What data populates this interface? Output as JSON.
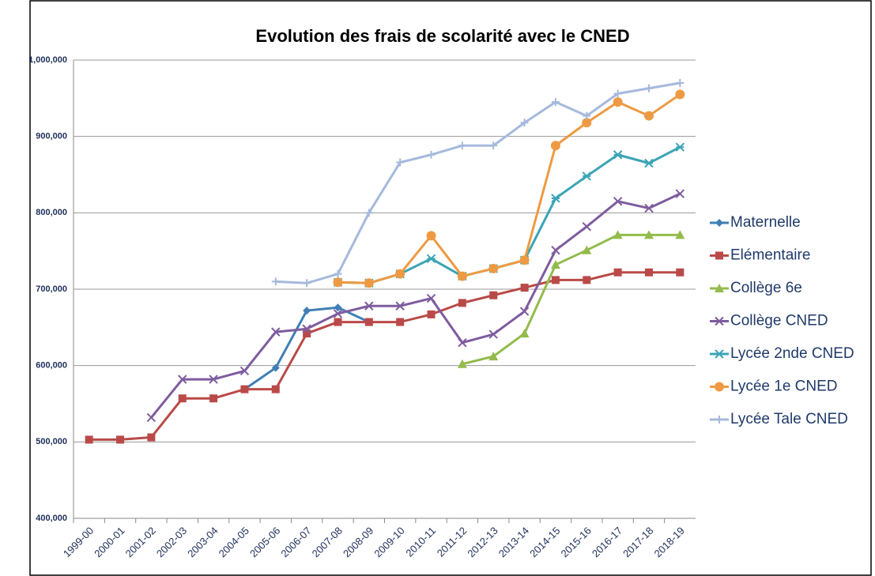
{
  "chart_data": {
    "type": "line",
    "title": "Evolution des frais de scolarité avec le CNED",
    "categories": [
      "1999-00",
      "2000-01",
      "2001-02",
      "2002-03",
      "2003-04",
      "2004-05",
      "2005-06",
      "2006-07",
      "2007-08",
      "2008-09",
      "2009-10",
      "2010-11",
      "2011-12",
      "2012-13",
      "2013-14",
      "2014-15",
      "2015-16",
      "2016-17",
      "2017-18",
      "2018-19"
    ],
    "ylim": [
      400000,
      1000000
    ],
    "yticks": [
      {
        "value": 400000,
        "label": "400,000"
      },
      {
        "value": 500000,
        "label": "500,000"
      },
      {
        "value": 600000,
        "label": "600,000"
      },
      {
        "value": 700000,
        "label": "700,000"
      },
      {
        "value": 800000,
        "label": "800,000"
      },
      {
        "value": 900000,
        "label": "900,000"
      },
      {
        "value": 1000000,
        "label": "1,000,000"
      }
    ],
    "grid": true,
    "series": [
      {
        "name": "Maternelle",
        "color": "#3f7fb5",
        "marker": "diamond",
        "values": [
          null,
          null,
          null,
          null,
          null,
          569000,
          597000,
          672000,
          676000,
          657000,
          null,
          null,
          null,
          null,
          null,
          null,
          null,
          null,
          null,
          null
        ]
      },
      {
        "name": "Elémentaire",
        "color": "#b94a48",
        "marker": "square",
        "values": [
          503000,
          503000,
          506000,
          557000,
          557000,
          569000,
          569000,
          642000,
          657000,
          657000,
          657000,
          667000,
          682000,
          692000,
          702000,
          712000,
          712000,
          722000,
          722000,
          722000
        ]
      },
      {
        "name": "Collège 6e",
        "color": "#93bb4c",
        "marker": "triangle",
        "values": [
          null,
          null,
          null,
          null,
          null,
          null,
          null,
          null,
          null,
          null,
          null,
          null,
          602000,
          612000,
          642000,
          732000,
          751000,
          771000,
          771000,
          771000
        ]
      },
      {
        "name": "Collège CNED",
        "color": "#7e5c9e",
        "marker": "x",
        "values": [
          null,
          null,
          532000,
          582000,
          582000,
          593000,
          644000,
          648000,
          668000,
          678000,
          678000,
          688000,
          630000,
          641000,
          671000,
          751000,
          782000,
          815000,
          806000,
          825000
        ]
      },
      {
        "name": "Lycée 2nde CNED",
        "color": "#3ba4b5",
        "marker": "star",
        "values": [
          null,
          null,
          null,
          null,
          null,
          null,
          null,
          null,
          709000,
          708000,
          720000,
          740000,
          717000,
          727000,
          738000,
          819000,
          848000,
          876000,
          865000,
          886000
        ]
      },
      {
        "name": "Lycée 1e CNED",
        "color": "#ee9a43",
        "marker": "circle",
        "values": [
          null,
          null,
          null,
          null,
          null,
          null,
          null,
          null,
          709000,
          708000,
          720000,
          770000,
          717000,
          727000,
          738000,
          888000,
          918000,
          945000,
          927000,
          955000
        ]
      },
      {
        "name": "Lycée Tale CNED",
        "color": "#a5b9dc",
        "marker": "plus",
        "values": [
          null,
          null,
          null,
          null,
          null,
          null,
          710000,
          708000,
          720000,
          800000,
          866000,
          876000,
          888000,
          888000,
          918000,
          945000,
          927000,
          956000,
          963000,
          970000
        ]
      }
    ]
  }
}
